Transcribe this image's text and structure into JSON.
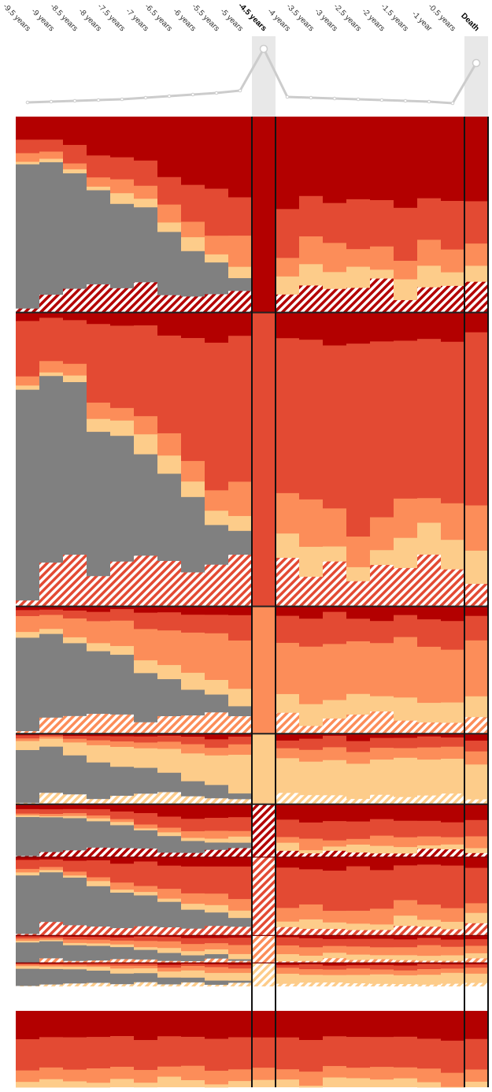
{
  "chart_data": {
    "type": "area",
    "title": "",
    "xlabel": "",
    "ylabel": "",
    "x_ticks": [
      "-9.5 years",
      "-9 years",
      "-8.5 years",
      "-8 years",
      "-7.5 years",
      "-7 years",
      "-6.5 years",
      "-6 years",
      "-5.5 years",
      "-5 years",
      "-4.5 years",
      "-4 years",
      "-3.5 years",
      "-3 years",
      "-2.5 years",
      "-2 years",
      "-1.5 years",
      "-1 year",
      "-0.5 years",
      "Death"
    ],
    "highlighted_ticks": [
      "-4.5 years",
      "Death"
    ],
    "trend_line": [
      0.1,
      0.11,
      0.12,
      0.13,
      0.14,
      0.16,
      0.18,
      0.2,
      0.22,
      0.25,
      0.78,
      0.17,
      0.16,
      0.15,
      0.14,
      0.13,
      0.12,
      0.11,
      0.09,
      0.6
    ],
    "state_colors": [
      "#b30000",
      "#e34a33",
      "#fc8d59",
      "#fdcc8a",
      "#808080"
    ],
    "hatched_color_order": [
      "#b30000",
      "#e34a33",
      "#fc8d59",
      "#fdcc8a"
    ],
    "groups": [
      {
        "state": 0,
        "hatched": false,
        "weight": 1.0
      },
      {
        "state": 1,
        "hatched": false,
        "weight": 1.5
      },
      {
        "state": 2,
        "hatched": false,
        "weight": 0.65
      },
      {
        "state": 3,
        "hatched": false,
        "weight": 0.36
      },
      {
        "state": 0,
        "hatched": true,
        "weight": 0.27
      },
      {
        "state": 1,
        "hatched": true,
        "weight": 0.4
      },
      {
        "state": 2,
        "hatched": true,
        "weight": 0.14
      },
      {
        "state": 3,
        "hatched": true,
        "weight": 0.12
      }
    ],
    "totals": {
      "group": [
        1.0,
        1.5,
        0.65,
        0.36,
        0.27,
        0.4,
        0.14,
        0.12
      ],
      "column": []
    }
  }
}
